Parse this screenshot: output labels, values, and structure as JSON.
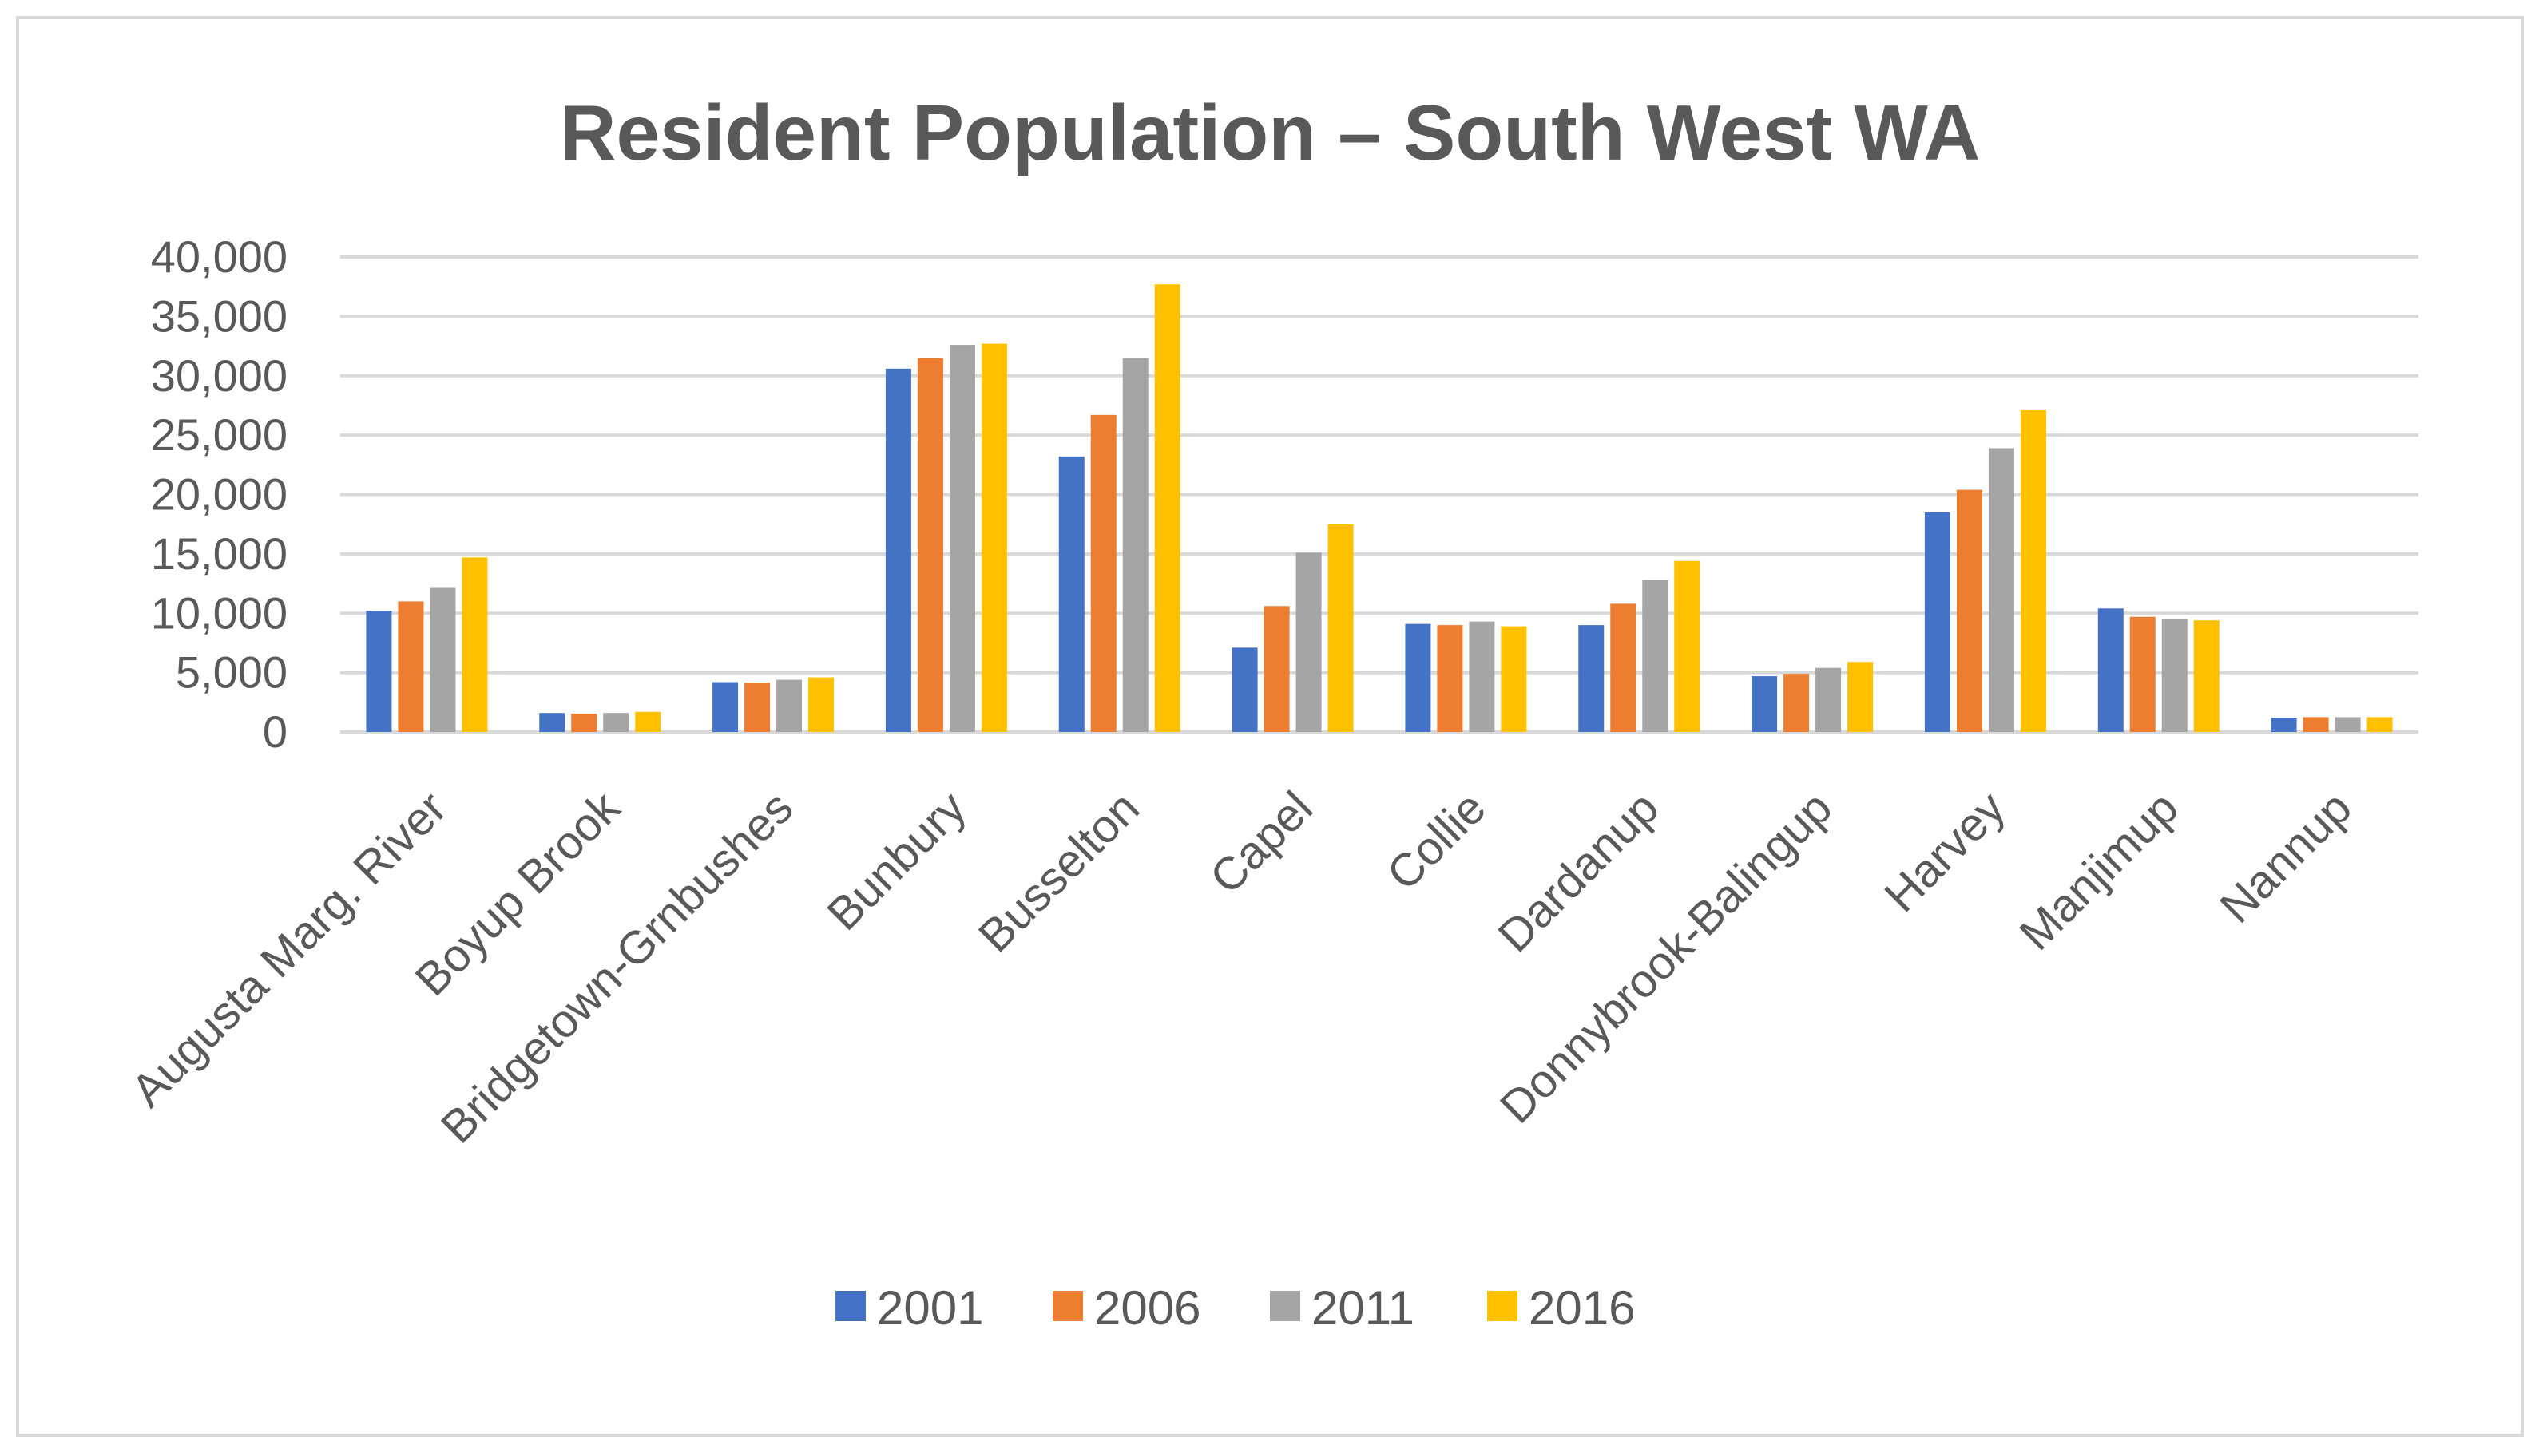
{
  "chart_data": {
    "type": "bar",
    "title": "Resident Population – South West WA",
    "xlabel": "",
    "ylabel": "",
    "ylim": [
      0,
      40000
    ],
    "yticks": [
      0,
      5000,
      10000,
      15000,
      20000,
      25000,
      30000,
      35000,
      40000
    ],
    "ytick_labels": [
      "0",
      "5,000",
      "10,000",
      "15,000",
      "20,000",
      "25,000",
      "30,000",
      "35,000",
      "40,000"
    ],
    "grid": true,
    "legend_position": "bottom",
    "categories": [
      "Augusta Marg. River",
      "Boyup Brook",
      "Bridgetown-Grnbushes",
      "Bunbury",
      "Busselton",
      "Capel",
      "Collie",
      "Dardanup",
      "Donnybrook-Balingup",
      "Harvey",
      "Manjimup",
      "Nannup"
    ],
    "series": [
      {
        "name": "2001",
        "color": "#4472C4",
        "values": [
          10200,
          1600,
          4200,
          30600,
          23200,
          7100,
          9100,
          9000,
          4700,
          18500,
          10400,
          1200
        ]
      },
      {
        "name": "2006",
        "color": "#ED7D31",
        "values": [
          11000,
          1550,
          4150,
          31500,
          26700,
          10600,
          9000,
          10800,
          4900,
          20400,
          9700,
          1250
        ]
      },
      {
        "name": "2011",
        "color": "#A5A5A5",
        "values": [
          12200,
          1600,
          4400,
          32600,
          31500,
          15100,
          9300,
          12800,
          5400,
          23900,
          9500,
          1250
        ]
      },
      {
        "name": "2016",
        "color": "#FFC000",
        "values": [
          14700,
          1700,
          4600,
          32700,
          37700,
          17500,
          8900,
          14400,
          5900,
          27100,
          9400,
          1250
        ]
      }
    ]
  },
  "colors": {
    "text": "#595959",
    "grid": "#d9d9d9",
    "frame": "#d9d9d9"
  }
}
